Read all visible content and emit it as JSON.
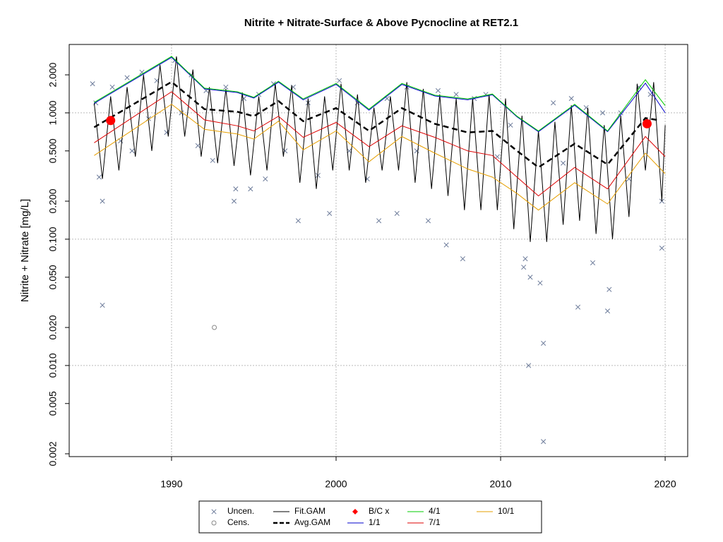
{
  "chart_data": {
    "type": "line",
    "title": "Nitrite + Nitrate-Surface & Above Pycnocline at RET2.1",
    "y_label": "Nitrite + Nitrate [mg/L]",
    "log_y": true,
    "grid": true,
    "xlim": [
      1983.78,
      2021.37
    ],
    "xticks": [
      1990,
      2000,
      2010,
      2020
    ],
    "ylim": [
      0.0019,
      3.48
    ],
    "yticks": [
      {
        "value": 2,
        "label": "2.000"
      },
      {
        "value": 1,
        "label": "1.000"
      },
      {
        "value": 0.5,
        "label": "0.500"
      },
      {
        "value": 0.2,
        "label": "0.200"
      },
      {
        "value": 0.1,
        "label": "0.100"
      },
      {
        "value": 0.05,
        "label": "0.050"
      },
      {
        "value": 0.02,
        "label": "0.020"
      },
      {
        "value": 0.01,
        "label": "0.010"
      },
      {
        "value": 0.005,
        "label": "0.005"
      },
      {
        "value": 0.002,
        "label": "0.002"
      }
    ],
    "series": [
      {
        "name": "Uncen.",
        "type": "scatter",
        "marker": "x",
        "color": "#6b7a99",
        "x": [
          1985.2,
          1985.4,
          1985.6,
          1985.8,
          1985.8,
          1986.4,
          1986.9,
          1987.3,
          1987.6,
          1988.2,
          1988.6,
          1989.1,
          1989.7,
          1990.2,
          1990.6,
          1991.2,
          1991.6,
          1992.1,
          1992.5,
          1993.3,
          1993.8,
          1993.9,
          1994.4,
          1994.8,
          1995.3,
          1995.7,
          1996.2,
          1996.9,
          1997.4,
          1997.7,
          1998.3,
          1998.9,
          1999.6,
          2000.2,
          2000.8,
          2001.3,
          2001.9,
          2002.6,
          2003.1,
          2003.7,
          2004.3,
          2004.9,
          2005.6,
          2006.2,
          2006.7,
          2007.3,
          2007.7,
          2008.4,
          2009.1,
          2009.8,
          2010.6,
          2011.4,
          2011.5,
          2011.7,
          2011.8,
          2012.4,
          2012.6,
          2012.6,
          2013.2,
          2013.8,
          2014.3,
          2014.7,
          2015.2,
          2015.6,
          2016.2,
          2016.5,
          2016.6,
          2017.3,
          2017.8,
          2018.4,
          2019.1,
          2019.8,
          2019.8
        ],
        "values": [
          1.7,
          1.2,
          0.31,
          0.03,
          0.2,
          1.6,
          0.6,
          1.9,
          0.5,
          2.1,
          0.9,
          1.8,
          0.7,
          2.6,
          1.0,
          2.0,
          0.55,
          1.5,
          0.42,
          1.6,
          0.2,
          0.25,
          1.3,
          0.25,
          1.4,
          0.3,
          1.7,
          0.5,
          1.6,
          0.14,
          1.2,
          0.32,
          0.16,
          1.8,
          0.5,
          1.2,
          0.3,
          0.14,
          1.3,
          0.16,
          1.6,
          0.5,
          0.14,
          1.5,
          0.09,
          1.4,
          0.07,
          1.3,
          1.4,
          0.45,
          0.8,
          0.06,
          0.07,
          0.01,
          0.05,
          0.045,
          0.015,
          0.0025,
          1.2,
          0.4,
          1.3,
          0.029,
          1.1,
          0.065,
          1.0,
          0.027,
          0.04,
          1.0,
          0.3,
          1.6,
          1.4,
          0.085,
          0.2
        ]
      },
      {
        "name": "Cens.",
        "type": "scatter",
        "marker": "o",
        "color": "#888888",
        "x": [
          1992.6
        ],
        "values": [
          0.02
        ]
      },
      {
        "name": "Fit.GAM",
        "type": "line",
        "color": "#000000",
        "width": 1,
        "x": [
          1985.3,
          1985.8,
          1986.3,
          1986.8,
          1987.3,
          1987.8,
          1988.3,
          1988.8,
          1989.3,
          1989.8,
          1990.3,
          1990.8,
          1991.3,
          1991.8,
          1992.3,
          1992.8,
          1993.3,
          1993.8,
          1994.3,
          1994.8,
          1995.3,
          1995.8,
          1996.3,
          1996.8,
          1997.3,
          1997.8,
          1998.3,
          1998.8,
          1999.3,
          1999.8,
          2000.3,
          2000.8,
          2001.3,
          2001.8,
          2002.3,
          2002.8,
          2003.3,
          2003.8,
          2004.3,
          2004.8,
          2005.3,
          2005.8,
          2006.3,
          2006.8,
          2007.3,
          2007.8,
          2008.3,
          2008.8,
          2009.3,
          2009.8,
          2010.3,
          2010.8,
          2011.3,
          2011.8,
          2012.3,
          2012.8,
          2013.3,
          2013.8,
          2014.3,
          2014.8,
          2015.3,
          2015.8,
          2016.3,
          2016.8,
          2017.3,
          2017.8,
          2018.3,
          2018.8,
          2019.3,
          2019.8,
          2020.0
        ],
        "values": [
          1.2,
          0.3,
          1.35,
          0.35,
          1.6,
          0.45,
          2.0,
          0.5,
          2.4,
          0.65,
          2.8,
          0.65,
          2.2,
          0.45,
          1.6,
          0.4,
          1.55,
          0.38,
          1.45,
          0.32,
          1.35,
          0.35,
          1.7,
          0.45,
          1.65,
          0.28,
          1.3,
          0.25,
          1.35,
          0.35,
          1.7,
          0.35,
          1.4,
          0.28,
          1.1,
          0.35,
          1.35,
          0.35,
          1.75,
          0.28,
          1.55,
          0.25,
          1.4,
          0.22,
          1.3,
          0.17,
          1.3,
          0.17,
          1.4,
          0.17,
          1.3,
          0.12,
          0.95,
          0.095,
          0.72,
          0.095,
          0.85,
          0.13,
          1.15,
          0.14,
          1.1,
          0.11,
          0.8,
          0.1,
          0.95,
          0.15,
          1.7,
          0.35,
          1.75,
          0.2,
          0.8
        ]
      },
      {
        "name": "Avg.GAM",
        "type": "line",
        "color": "#000000",
        "width": 2.5,
        "dash": true,
        "x": [
          1985.3,
          1990,
          1992,
          1994,
          1995,
          1996.5,
          1998,
          2000,
          2002,
          2004,
          2006,
          2008,
          2009.5,
          2011,
          2012.3,
          2014.5,
          2016.5,
          2018.8,
          2019.5
        ],
        "values": [
          0.77,
          1.76,
          1.07,
          1.02,
          0.94,
          1.24,
          0.86,
          1.09,
          0.72,
          1.09,
          0.82,
          0.7,
          0.72,
          0.5,
          0.37,
          0.57,
          0.39,
          0.91,
          0.88
        ]
      },
      {
        "name": "B/C x",
        "type": "scatter",
        "marker": "dot",
        "color": "#ff0000",
        "x": [
          1986.3,
          2018.9
        ],
        "values": [
          0.87,
          0.82
        ]
      },
      {
        "name": "1/1",
        "type": "line",
        "color": "#0000cc",
        "width": 1,
        "x": [
          1985.3,
          1990,
          1992,
          1994,
          1995,
          1996.5,
          1998,
          2000,
          2002,
          2004,
          2006,
          2008,
          2009.5,
          2011,
          2012.3,
          2014.5,
          2016.5,
          2018.8,
          2020
        ],
        "values": [
          1.19,
          2.75,
          1.55,
          1.45,
          1.31,
          1.75,
          1.27,
          1.68,
          1.05,
          1.68,
          1.36,
          1.27,
          1.39,
          0.93,
          0.71,
          1.15,
          0.71,
          1.72,
          1.0
        ]
      },
      {
        "name": "4/1",
        "type": "line",
        "color": "#00cc00",
        "width": 1,
        "x": [
          1985.3,
          1990,
          1992,
          1994,
          1995,
          1996.5,
          1998,
          2000,
          2002,
          2004,
          2006,
          2008,
          2009.5,
          2011,
          2012.3,
          2014.5,
          2016.5,
          2018.8,
          2020
        ],
        "values": [
          1.21,
          2.8,
          1.57,
          1.47,
          1.33,
          1.78,
          1.29,
          1.71,
          1.07,
          1.71,
          1.38,
          1.29,
          1.41,
          0.94,
          0.72,
          1.17,
          0.72,
          1.83,
          1.14
        ]
      },
      {
        "name": "7/1",
        "type": "line",
        "color": "#dd0000",
        "width": 1,
        "x": [
          1985.3,
          1990,
          1992,
          1994,
          1995,
          1996.5,
          1998,
          2000,
          2002,
          2004,
          2006,
          2008,
          2009.5,
          2011,
          2012.3,
          2014.5,
          2016.5,
          2018.8,
          2020
        ],
        "values": [
          0.58,
          1.47,
          0.88,
          0.79,
          0.72,
          0.94,
          0.64,
          0.84,
          0.54,
          0.79,
          0.64,
          0.5,
          0.46,
          0.31,
          0.22,
          0.37,
          0.25,
          0.65,
          0.45
        ]
      },
      {
        "name": "10/1",
        "type": "line",
        "color": "#e69f00",
        "width": 1,
        "x": [
          1985.3,
          1990,
          1992,
          1994,
          1995,
          1996.5,
          1998,
          2000,
          2002,
          2004,
          2006,
          2008,
          2009.5,
          2011,
          2012.3,
          2014.5,
          2016.5,
          2018.8,
          2020
        ],
        "values": [
          0.46,
          1.17,
          0.74,
          0.68,
          0.62,
          0.86,
          0.51,
          0.72,
          0.41,
          0.65,
          0.48,
          0.36,
          0.31,
          0.23,
          0.17,
          0.28,
          0.19,
          0.48,
          0.33
        ]
      }
    ]
  }
}
